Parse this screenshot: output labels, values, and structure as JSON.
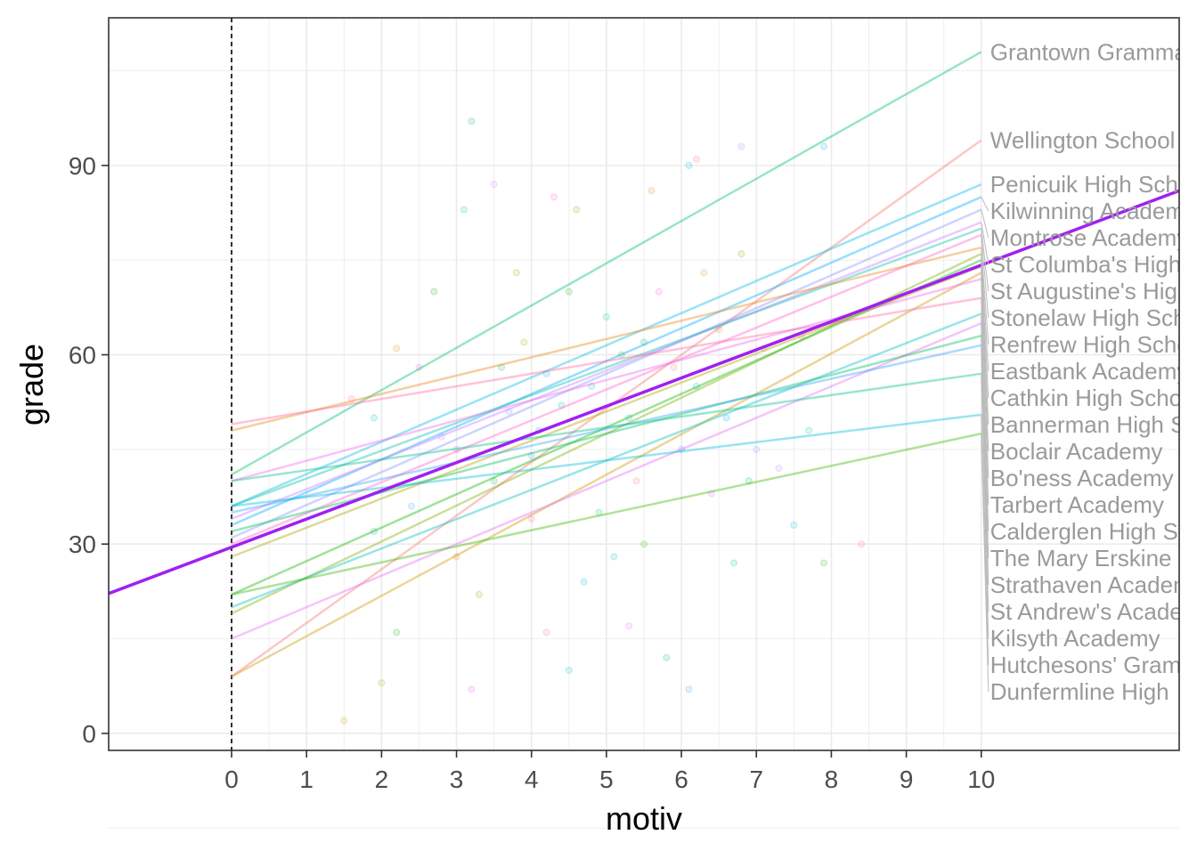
{
  "chart_data": {
    "type": "line",
    "xlabel": "motiv",
    "ylabel": "grade",
    "xlim": [
      -1.64,
      12.64
    ],
    "ylim": [
      -2.7,
      113.4
    ],
    "x_ticks": [
      "0",
      "1",
      "2",
      "3",
      "4",
      "5",
      "6",
      "7",
      "8",
      "9",
      "10"
    ],
    "y_ticks": [
      "0",
      "30",
      "60",
      "90"
    ],
    "grid": true,
    "reference_line": {
      "x": 0,
      "style": "dashed"
    },
    "fixed_effect": {
      "intercept": 29.5,
      "slope": 4.47,
      "color": "#a020f0"
    },
    "series": [
      {
        "name": "Grantown Grammar",
        "intercept": 41,
        "end": 108,
        "color": "#00be67"
      },
      {
        "name": "Wellington School",
        "intercept": 9,
        "end": 94,
        "color": "#f8766d"
      },
      {
        "name": "Penicuik High School",
        "intercept": 36,
        "end": 87,
        "color": "#00b8e7"
      },
      {
        "name": "Kilwinning Academy",
        "intercept": 33,
        "end": 85,
        "color": "#00a9ff"
      },
      {
        "name": "Montrose Academy",
        "intercept": 31,
        "end": 83,
        "color": "#8494ff"
      },
      {
        "name": "St Columba's High",
        "intercept": 34,
        "end": 81,
        "color": "#c77cff"
      },
      {
        "name": "St Augustine's High",
        "intercept": 36,
        "end": 80,
        "color": "#00c1aa"
      },
      {
        "name": "Stonelaw High School",
        "intercept": 30,
        "end": 79,
        "color": "#ff61cc"
      },
      {
        "name": "Renfrew High School",
        "intercept": 48,
        "end": 77,
        "color": "#e68613"
      },
      {
        "name": "Eastbank Academy",
        "intercept": 19,
        "end": 76,
        "color": "#7cae00"
      },
      {
        "name": "Cathkin High School",
        "intercept": 22,
        "end": 75,
        "color": "#0cb702"
      },
      {
        "name": "Bannerman High School",
        "intercept": 28,
        "end": 74,
        "color": "#aba300"
      },
      {
        "name": "Boclair Academy",
        "intercept": 9,
        "end": 73,
        "color": "#cd9600"
      },
      {
        "name": "Bo'ness Academy",
        "intercept": 40,
        "end": 72,
        "color": "#ed68ed"
      },
      {
        "name": "Tarbert Academy",
        "intercept": 49,
        "end": 69,
        "color": "#ff68a1"
      },
      {
        "name": "Calderglen High School",
        "intercept": 20,
        "end": 66.5,
        "color": "#00bfc4"
      },
      {
        "name": "The Mary Erskine",
        "intercept": 15,
        "end": 65,
        "color": "#e76bf3"
      },
      {
        "name": "Strathaven Academy",
        "intercept": 32,
        "end": 63,
        "color": "#00bd5c"
      },
      {
        "name": "St Andrew's Academy",
        "intercept": 35,
        "end": 61.5,
        "color": "#35a2ff"
      },
      {
        "name": "Kilsyth Academy",
        "intercept": 40,
        "end": 57,
        "color": "#00c08b"
      },
      {
        "name": "Hutchesons' Grammar",
        "intercept": 36,
        "end": 50.5,
        "color": "#00bcd8"
      },
      {
        "name": "Dunfermline High",
        "intercept": 22,
        "end": 47.5,
        "color": "#39b600"
      }
    ],
    "points": [
      [
        3.2,
        97
      ],
      [
        6.2,
        91
      ],
      [
        6.1,
        90
      ],
      [
        7.9,
        93
      ],
      [
        6.8,
        93
      ],
      [
        3.5,
        87
      ],
      [
        3.1,
        83
      ],
      [
        4.3,
        85
      ],
      [
        5.6,
        86
      ],
      [
        4.6,
        83
      ],
      [
        2.7,
        70
      ],
      [
        3.8,
        73
      ],
      [
        2.2,
        61
      ],
      [
        2.5,
        58
      ],
      [
        1.6,
        53
      ],
      [
        1.9,
        50
      ],
      [
        3.0,
        45
      ],
      [
        3.5,
        40
      ],
      [
        4.0,
        44
      ],
      [
        4.4,
        52
      ],
      [
        4.8,
        55
      ],
      [
        5.2,
        60
      ],
      [
        5.5,
        62
      ],
      [
        5.9,
        58
      ],
      [
        6.2,
        55
      ],
      [
        6.6,
        50
      ],
      [
        7.0,
        45
      ],
      [
        7.3,
        42
      ],
      [
        7.7,
        48
      ],
      [
        8.4,
        30
      ],
      [
        3.0,
        28
      ],
      [
        3.3,
        22
      ],
      [
        2.2,
        16
      ],
      [
        2.0,
        8
      ],
      [
        1.5,
        2
      ],
      [
        3.2,
        7
      ],
      [
        4.2,
        16
      ],
      [
        4.5,
        10
      ],
      [
        5.3,
        17
      ],
      [
        5.8,
        12
      ],
      [
        6.1,
        7
      ],
      [
        6.7,
        27
      ],
      [
        7.5,
        33
      ],
      [
        7.9,
        27
      ],
      [
        4.9,
        35
      ],
      [
        5.4,
        40
      ],
      [
        6.0,
        45
      ],
      [
        4.1,
        48
      ],
      [
        3.7,
        51
      ],
      [
        2.8,
        47
      ],
      [
        5.0,
        66
      ],
      [
        5.7,
        70
      ],
      [
        6.3,
        73
      ],
      [
        6.8,
        76
      ],
      [
        4.5,
        70
      ],
      [
        3.9,
        62
      ],
      [
        7.1,
        61
      ],
      [
        7.6,
        63
      ],
      [
        4.0,
        34
      ],
      [
        5.1,
        28
      ],
      [
        6.4,
        38
      ],
      [
        6.9,
        40
      ],
      [
        2.4,
        36
      ],
      [
        1.9,
        32
      ],
      [
        4.7,
        24
      ],
      [
        5.5,
        30
      ],
      [
        3.6,
        58
      ],
      [
        6.5,
        64
      ],
      [
        5.3,
        50
      ],
      [
        4.2,
        57
      ]
    ]
  }
}
